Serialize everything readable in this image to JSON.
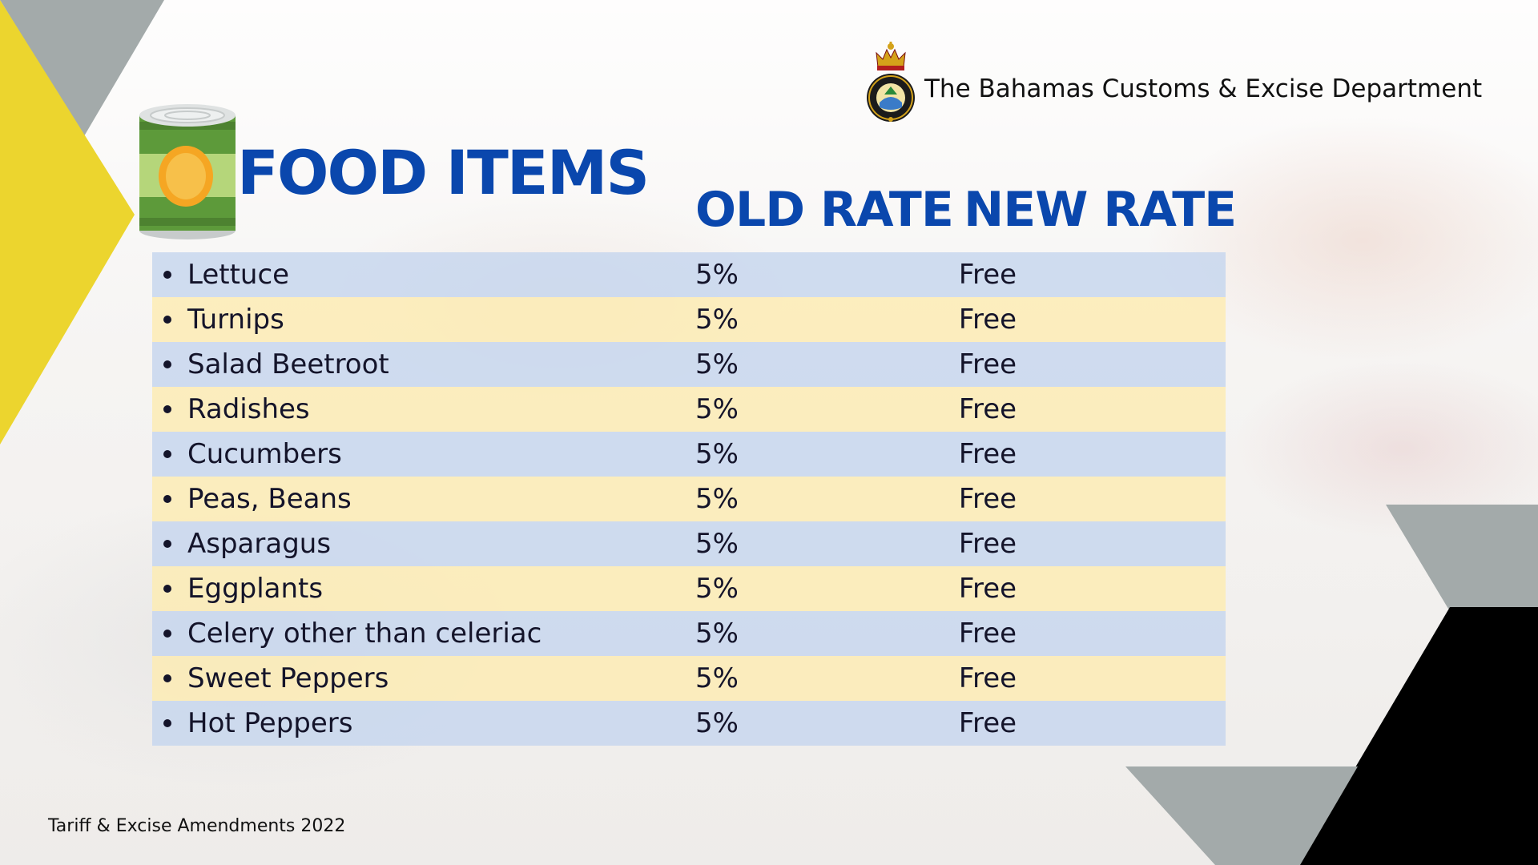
{
  "brand": {
    "department": "The Bahamas Customs & Excise Department",
    "seal_icon": "customs-seal-icon"
  },
  "heading": {
    "title": "FOOD ITEMS",
    "icon": "food-can-icon"
  },
  "columns": {
    "old_rate": "OLD RATE",
    "new_rate": "NEW RATE"
  },
  "items": [
    {
      "name": "Lettuce",
      "old_rate": "5%",
      "new_rate": "Free"
    },
    {
      "name": "Turnips",
      "old_rate": "5%",
      "new_rate": "Free"
    },
    {
      "name": "Salad Beetroot",
      "old_rate": "5%",
      "new_rate": "Free"
    },
    {
      "name": "Radishes",
      "old_rate": "5%",
      "new_rate": "Free"
    },
    {
      "name": "Cucumbers",
      "old_rate": "5%",
      "new_rate": "Free"
    },
    {
      "name": "Peas, Beans",
      "old_rate": "5%",
      "new_rate": "Free"
    },
    {
      "name": "Asparagus",
      "old_rate": "5%",
      "new_rate": "Free"
    },
    {
      "name": "Eggplants",
      "old_rate": "5%",
      "new_rate": "Free"
    },
    {
      "name": "Celery other than celeriac",
      "old_rate": "5%",
      "new_rate": "Free"
    },
    {
      "name": "Sweet Peppers",
      "old_rate": "5%",
      "new_rate": "Free"
    },
    {
      "name": "Hot Peppers",
      "old_rate": "5%",
      "new_rate": "Free"
    }
  ],
  "footer": {
    "text": "Tariff & Excise Amendments 2022"
  },
  "colors": {
    "title_blue": "#0a47ad",
    "row_blue": "#c6d6ee",
    "row_yellow": "#fcecb2",
    "accent_yellow": "#ecd52e",
    "accent_gray": "#a3aaaa",
    "accent_black": "#000000"
  }
}
